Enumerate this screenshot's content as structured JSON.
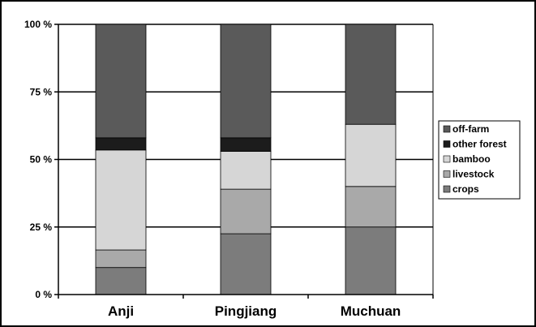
{
  "chart_data": {
    "type": "bar",
    "stacked": true,
    "categories": [
      "Anji",
      "Pingjiang",
      "Muchuan"
    ],
    "series": [
      {
        "name": "crops",
        "values": [
          10,
          22.5,
          25
        ],
        "color": "#7c7c7c"
      },
      {
        "name": "livestock",
        "values": [
          6.5,
          16.5,
          15
        ],
        "color": "#a9a9a9"
      },
      {
        "name": "bamboo",
        "values": [
          37,
          14,
          23
        ],
        "color": "#d6d6d6"
      },
      {
        "name": "other forest",
        "values": [
          4.5,
          5,
          0
        ],
        "color": "#1c1c1c"
      },
      {
        "name": "off-farm",
        "values": [
          42,
          42,
          37
        ],
        "color": "#5a5a5a"
      }
    ],
    "legend_order": [
      "off-farm",
      "other forest",
      "bamboo",
      "livestock",
      "crops"
    ],
    "yticks": [
      "0 %",
      "25 %",
      "50 %",
      "75 %",
      "100 %"
    ],
    "ylim": [
      0,
      100
    ],
    "grid": true,
    "legend_position": "right"
  }
}
